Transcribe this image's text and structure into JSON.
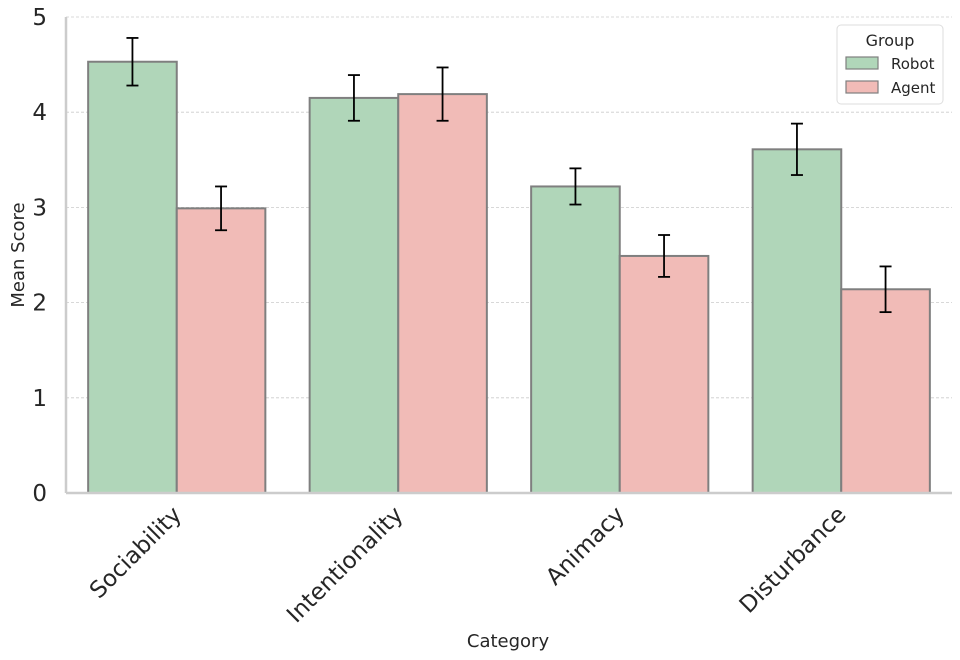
{
  "chart_data": {
    "type": "bar",
    "title": "",
    "xlabel": "Category",
    "ylabel": "Mean Score",
    "ylim": [
      0,
      5
    ],
    "yticks": [
      0,
      1,
      2,
      3,
      4,
      5
    ],
    "grid": "horizontal dashed",
    "categories": [
      "Sociability",
      "Intentionality",
      "Animacy",
      "Disturbance"
    ],
    "series": [
      {
        "name": "Robot",
        "values": [
          4.53,
          4.15,
          3.22,
          3.61
        ],
        "error": [
          0.25,
          0.24,
          0.19,
          0.27
        ],
        "color": "#b0d6b9"
      },
      {
        "name": "Agent",
        "values": [
          2.99,
          4.19,
          2.49,
          2.14
        ],
        "error": [
          0.23,
          0.28,
          0.22,
          0.24
        ],
        "color": "#f1bbb7"
      }
    ],
    "legend": {
      "title": "Group",
      "placement": "top-right"
    },
    "edge_color": "#7f7f7f",
    "axis_color": "#cccccc"
  }
}
